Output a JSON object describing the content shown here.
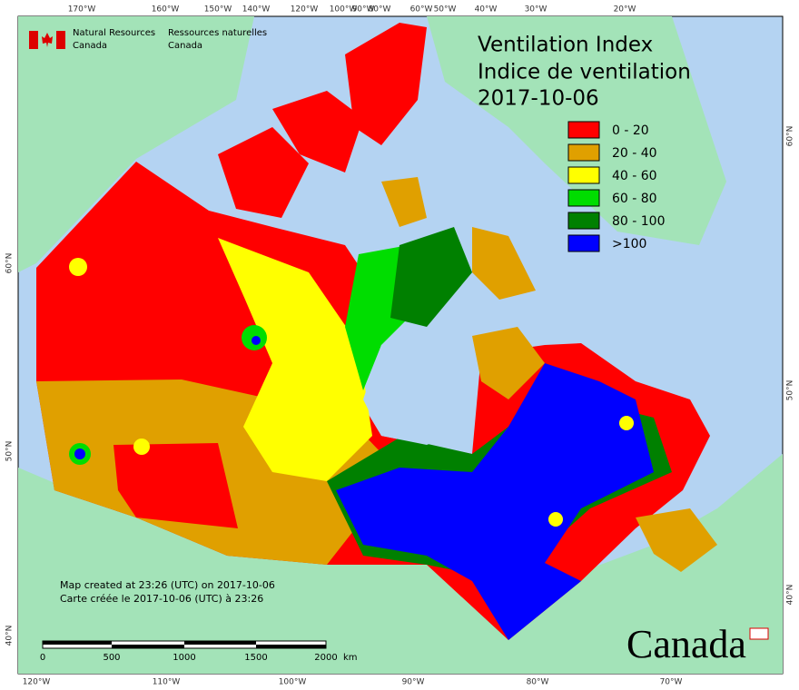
{
  "header": {
    "agency_en": [
      "Natural Resources",
      "Canada"
    ],
    "agency_fr": [
      "Ressources naturelles",
      "Canada"
    ]
  },
  "title": {
    "line1": "Ventilation Index",
    "line2": "Indice de ventilation",
    "date": "2017-10-06"
  },
  "legend": [
    {
      "label": "0 - 20",
      "color": "#ff0000"
    },
    {
      "label": "20 - 40",
      "color": "#e0a000"
    },
    {
      "label": "40 - 60",
      "color": "#ffff00"
    },
    {
      "label": "60 - 80",
      "color": "#00dd00"
    },
    {
      "label": "80 - 100",
      "color": "#008000"
    },
    {
      "label": ">100",
      "color": "#0000ff"
    }
  ],
  "graticule": {
    "top": [
      "170°W",
      "160°W",
      "150°W",
      "140°W",
      "120°W",
      "100°W",
      "90°W",
      "80°W",
      "60°W",
      "50°W",
      "40°W",
      "30°W",
      "20°W"
    ],
    "bottom": [
      "120°W",
      "110°W",
      "100°W",
      "90°W",
      "80°W",
      "70°W"
    ],
    "left": [
      "60°N",
      "50°N",
      "40°N"
    ],
    "right": [
      "60°N",
      "50°N",
      "40°N"
    ]
  },
  "footnote": [
    "Map created at 23:26 (UTC) on 2017-10-06",
    "Carte créée le 2017-10-06 (UTC) à 23:26"
  ],
  "scale_bar": {
    "labels": [
      "0",
      "500",
      "1000",
      "1500",
      "2000"
    ],
    "unit": "km"
  },
  "wordmark": "Canada"
}
